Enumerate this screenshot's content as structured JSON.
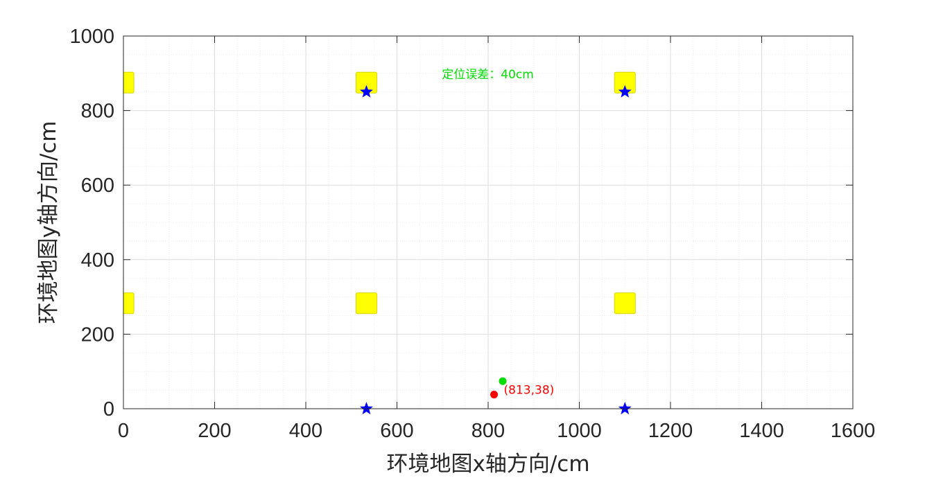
{
  "chart_data": {
    "type": "scatter",
    "title": "",
    "xlabel": "环境地图x轴方向/cm",
    "ylabel": "环境地图y轴方向/cm",
    "xlim": [
      0,
      1600
    ],
    "ylim": [
      0,
      1000
    ],
    "xticks": [
      "0",
      "200",
      "400",
      "600",
      "800",
      "1000",
      "1200",
      "1400",
      "1600"
    ],
    "yticks": [
      "0",
      "200",
      "400",
      "600",
      "800",
      "1000"
    ],
    "grid": "on",
    "minor_grid": "on",
    "colors": {
      "square": "#ffff00",
      "star": "#0000ff",
      "estimate": "#ff0000",
      "true_position": "#00dd00",
      "grid_major": "#dedede",
      "grid_minor": "#eeeeee",
      "axis": "#262626"
    },
    "yellow_squares": [
      {
        "x": 0,
        "y": 875
      },
      {
        "x": 533,
        "y": 875
      },
      {
        "x": 1100,
        "y": 875
      },
      {
        "x": 0,
        "y": 283
      },
      {
        "x": 533,
        "y": 283
      },
      {
        "x": 1100,
        "y": 283
      }
    ],
    "blue_stars": [
      {
        "x": 533,
        "y": 850
      },
      {
        "x": 1100,
        "y": 850
      },
      {
        "x": 533,
        "y": 0
      },
      {
        "x": 1100,
        "y": 0
      }
    ],
    "green_point": {
      "x": 832,
      "y": 74
    },
    "red_point": {
      "x": 813,
      "y": 38
    },
    "annotations": {
      "red_label": "(813,38)",
      "error_label": "定位误差：40cm",
      "error_label_anchor": {
        "x": 700,
        "y": 900
      }
    }
  }
}
